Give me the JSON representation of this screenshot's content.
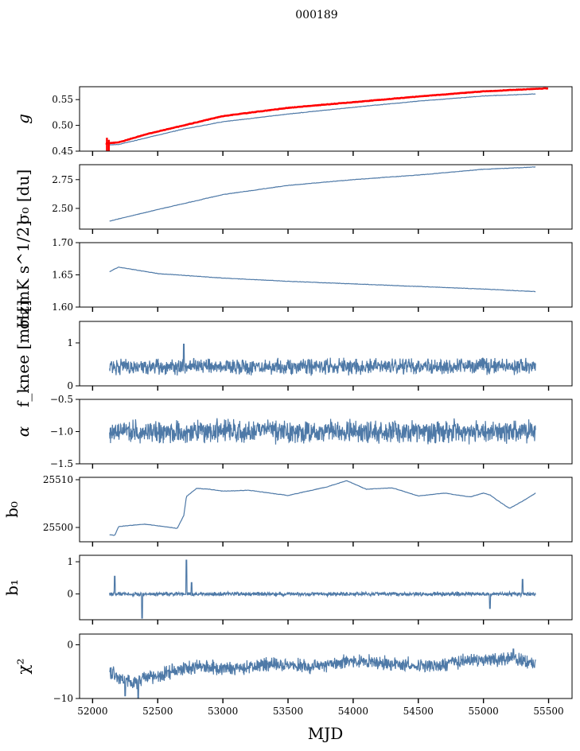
{
  "title": "000189",
  "xlabel": "MJD",
  "chart_data": [
    {
      "type": "line",
      "id": "g",
      "ylabel": "g",
      "ylabel_style": "italic",
      "ylim": [
        0.45,
        0.575
      ],
      "yticks": [
        0.45,
        0.5,
        0.55
      ],
      "ytick_labels": [
        "0.45",
        "0.50",
        "0.55"
      ],
      "xlim": [
        51900,
        55680
      ],
      "series": [
        {
          "color": "#4e79a7",
          "x": [
            52130,
            52200,
            52400,
            52700,
            53000,
            53500,
            54000,
            54500,
            55000,
            55400
          ],
          "y": [
            0.462,
            0.463,
            0.475,
            0.493,
            0.507,
            0.522,
            0.535,
            0.547,
            0.557,
            0.561
          ]
        },
        {
          "color": "#ff0000",
          "x": [
            52100,
            52200,
            52400,
            52700,
            53000,
            53500,
            54000,
            54500,
            55000,
            55500
          ],
          "y": [
            0.465,
            0.467,
            0.482,
            0.5,
            0.518,
            0.534,
            0.545,
            0.556,
            0.566,
            0.572
          ]
        }
      ]
    },
    {
      "type": "line",
      "id": "sigma0_du",
      "ylabel": "σ₀ [du]",
      "ylim": [
        2.32,
        2.88
      ],
      "yticks": [
        2.5,
        2.75
      ],
      "ytick_labels": [
        "2.50",
        "2.75"
      ],
      "xlim": [
        51900,
        55680
      ],
      "series": [
        {
          "color": "#4e79a7",
          "x": [
            52130,
            52500,
            53000,
            53500,
            54000,
            54500,
            55000,
            55400
          ],
          "y": [
            2.39,
            2.49,
            2.62,
            2.7,
            2.75,
            2.79,
            2.84,
            2.86
          ]
        }
      ]
    },
    {
      "type": "line",
      "id": "sigma0_mK",
      "ylabel": "σ₀[mK s^1/2]",
      "ylim": [
        1.6,
        1.7
      ],
      "yticks": [
        1.6,
        1.65,
        1.7
      ],
      "ytick_labels": [
        "1.60",
        "1.65",
        "1.70"
      ],
      "xlim": [
        51900,
        55680
      ],
      "series": [
        {
          "color": "#4e79a7",
          "x": [
            52130,
            52200,
            52500,
            53000,
            53500,
            54000,
            54500,
            55000,
            55400
          ],
          "y": [
            1.655,
            1.662,
            1.652,
            1.645,
            1.64,
            1.636,
            1.632,
            1.628,
            1.624
          ]
        }
      ]
    },
    {
      "type": "line",
      "id": "fknee",
      "ylabel": "f_knee [mHz]",
      "ylim": [
        0,
        1.5
      ],
      "yticks": [
        0,
        1
      ],
      "ytick_labels": [
        "0",
        "1"
      ],
      "xlim": [
        51900,
        55680
      ],
      "noise": {
        "mean": 0.45,
        "amp": 0.15
      },
      "spikes": [
        {
          "x": 52700,
          "y": 0.97
        }
      ],
      "series": [
        {
          "color": "#4e79a7",
          "x": [
            52130,
            55400
          ],
          "y": [
            0.45,
            0.45
          ]
        }
      ]
    },
    {
      "type": "line",
      "id": "alpha",
      "ylabel": "α",
      "ylabel_style": "italic",
      "ylim": [
        -1.5,
        -0.5
      ],
      "yticks": [
        -1.5,
        -1.0,
        -0.5
      ],
      "ytick_labels": [
        "−1.5",
        "−1.0",
        "−0.5"
      ],
      "xlim": [
        51900,
        55680
      ],
      "noise": {
        "mean": -1.0,
        "amp": 0.14
      },
      "series": [
        {
          "color": "#4e79a7",
          "x": [
            52130,
            55400
          ],
          "y": [
            -1.0,
            -1.0
          ]
        }
      ]
    },
    {
      "type": "line",
      "id": "b0",
      "ylabel": "b₀",
      "ylim": [
        25497,
        25510.5
      ],
      "yticks": [
        25500,
        25510
      ],
      "ytick_labels": [
        "25500",
        "25510"
      ],
      "xlim": [
        51900,
        55680
      ],
      "series": [
        {
          "color": "#4e79a7",
          "x": [
            52130,
            52170,
            52200,
            52400,
            52600,
            52650,
            52700,
            52720,
            52800,
            52900,
            53000,
            53200,
            53500,
            53800,
            53950,
            54100,
            54300,
            54500,
            54700,
            54900,
            55000,
            55050,
            55100,
            55200,
            55300,
            55400
          ],
          "y": [
            25498.5,
            25498.3,
            25500.2,
            25500.7,
            25500.0,
            25499.8,
            25502.5,
            25506.5,
            25508.2,
            25508.0,
            25507.6,
            25507.8,
            25506.7,
            25508.5,
            25509.8,
            25508.0,
            25508.3,
            25506.6,
            25507.2,
            25506.4,
            25507.2,
            25506.8,
            25505.8,
            25504.0,
            25505.5,
            25507.2
          ]
        }
      ]
    },
    {
      "type": "line",
      "id": "b1",
      "ylabel": "b₁",
      "ylim": [
        -0.8,
        1.2
      ],
      "yticks": [
        0,
        1
      ],
      "ytick_labels": [
        "0",
        "1"
      ],
      "xlim": [
        51900,
        55680
      ],
      "noise": {
        "mean": 0.0,
        "amp": 0.05
      },
      "spikes": [
        {
          "x": 52170,
          "y": 0.55
        },
        {
          "x": 52380,
          "y": -0.75
        },
        {
          "x": 52720,
          "y": 1.05
        },
        {
          "x": 52760,
          "y": 0.35
        },
        {
          "x": 55050,
          "y": -0.45
        },
        {
          "x": 55300,
          "y": 0.45
        }
      ],
      "series": [
        {
          "color": "#4e79a7",
          "x": [
            52130,
            55400
          ],
          "y": [
            0.0,
            0.0
          ]
        }
      ]
    },
    {
      "type": "line",
      "id": "chi2",
      "ylabel": "χ²",
      "ylim": [
        -10,
        2
      ],
      "yticks": [
        -10,
        0
      ],
      "ytick_labels": [
        "−10",
        "0"
      ],
      "xlim": [
        51900,
        55680
      ],
      "noise": {
        "mean": -4.0,
        "amp": 1.1
      },
      "spikes": [
        {
          "x": 52250,
          "y": -9.5
        },
        {
          "x": 52350,
          "y": -10.0
        },
        {
          "x": 55230,
          "y": -0.8
        }
      ],
      "series": [
        {
          "color": "#4e79a7",
          "x": [
            52130,
            52300,
            52500,
            52800,
            53100,
            53400,
            53700,
            54000,
            54300,
            54600,
            54900,
            55200,
            55400
          ],
          "y": [
            -5.0,
            -7.0,
            -5.5,
            -4.0,
            -4.5,
            -3.5,
            -4.0,
            -3.0,
            -3.5,
            -4.0,
            -3.0,
            -2.5,
            -3.5
          ]
        }
      ]
    }
  ],
  "xticks": [
    52000,
    52500,
    53000,
    53500,
    54000,
    54500,
    55000,
    55500
  ],
  "xtick_labels": [
    "52000",
    "52500",
    "53000",
    "53500",
    "54000",
    "54500",
    "55000",
    "55500"
  ]
}
